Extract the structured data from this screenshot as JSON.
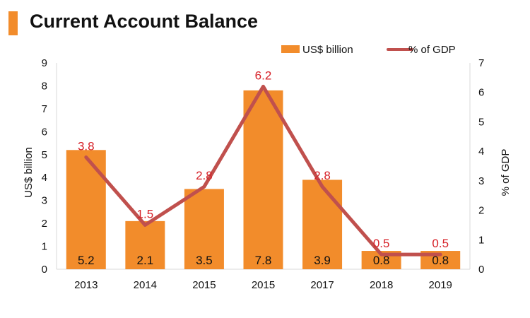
{
  "colors": {
    "bar": "#f28c2b",
    "line": "#c0504d",
    "line_label": "#d62027",
    "title_accent": "#f28c2b"
  },
  "chart_data": {
    "type": "bar",
    "title": "Current Account Balance",
    "categories": [
      "2013",
      "2014",
      "2015",
      "2015",
      "2017",
      "2018",
      "2019"
    ],
    "series": [
      {
        "name": "US$ billion",
        "kind": "bar",
        "axis": "left",
        "values": [
          5.2,
          2.1,
          3.5,
          7.8,
          3.9,
          0.8,
          0.8
        ],
        "labels": [
          "5.2",
          "2.1",
          "3.5",
          "7.8",
          "3.9",
          "0.8",
          "0.8"
        ]
      },
      {
        "name": "% of GDP",
        "kind": "line",
        "axis": "right",
        "values": [
          3.8,
          1.5,
          2.8,
          6.2,
          2.8,
          0.5,
          0.5
        ],
        "labels": [
          "3.8",
          "1.5",
          "2.8",
          "6.2",
          "2.8",
          "0.5",
          "0.5"
        ]
      }
    ],
    "ylabel": "US$  billion",
    "y2label": "% of GDP",
    "ylim": [
      0,
      9
    ],
    "y2lim": [
      0,
      7
    ],
    "yticks": [
      "0",
      "1",
      "2",
      "3",
      "4",
      "5",
      "6",
      "7",
      "8",
      "9"
    ],
    "y2ticks": [
      "0",
      "1",
      "2",
      "3",
      "4",
      "5",
      "6",
      "7"
    ],
    "legend": {
      "position": "top-right",
      "bar_label": "US$ billion",
      "line_label": "% of GDP"
    },
    "grid": false
  }
}
